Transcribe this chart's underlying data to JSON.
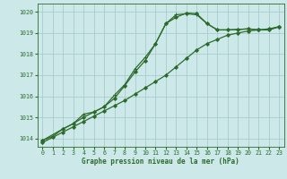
{
  "title": "Graphe pression niveau de la mer (hPa)",
  "bg_color": "#cce8e8",
  "grid_color": "#a8cccc",
  "line_color": "#2d6b2d",
  "xlim": [
    -0.5,
    23.5
  ],
  "ylim": [
    1013.6,
    1020.4
  ],
  "yticks": [
    1014,
    1015,
    1016,
    1017,
    1018,
    1019,
    1020
  ],
  "xticks": [
    0,
    1,
    2,
    3,
    4,
    5,
    6,
    7,
    8,
    9,
    10,
    11,
    12,
    13,
    14,
    15,
    16,
    17,
    18,
    19,
    20,
    21,
    22,
    23
  ],
  "series": [
    {
      "x": [
        0,
        1,
        2,
        3,
        4,
        5,
        6,
        7,
        8,
        9,
        10,
        11,
        12,
        13,
        14,
        15,
        16,
        17,
        18,
        19,
        20,
        21,
        22,
        23
      ],
      "y": [
        1013.8,
        1014.05,
        1014.3,
        1014.55,
        1014.8,
        1015.05,
        1015.3,
        1015.55,
        1015.8,
        1016.1,
        1016.4,
        1016.7,
        1017.0,
        1017.4,
        1017.8,
        1018.2,
        1018.5,
        1018.7,
        1018.9,
        1019.0,
        1019.1,
        1019.15,
        1019.2,
        1019.3
      ],
      "marker": "D",
      "markersize": 2.0,
      "linewidth": 0.9,
      "markerfacecolor": "#2d6b2d"
    },
    {
      "x": [
        0,
        1,
        2,
        3,
        4,
        5,
        6,
        7,
        8,
        9,
        10,
        11,
        12,
        13,
        14,
        15,
        16,
        17,
        18,
        19,
        20,
        21,
        22,
        23
      ],
      "y": [
        1013.9,
        1014.1,
        1014.45,
        1014.7,
        1015.15,
        1015.25,
        1015.5,
        1016.05,
        1016.55,
        1017.3,
        1017.85,
        1018.5,
        1019.45,
        1019.87,
        1019.92,
        1019.87,
        1019.45,
        1019.15,
        1019.15,
        1019.17,
        1019.2,
        1019.15,
        1019.15,
        1019.3
      ],
      "marker": "+",
      "markersize": 3.5,
      "linewidth": 0.9,
      "markerfacecolor": "#2d6b2d"
    },
    {
      "x": [
        0,
        2,
        3,
        4,
        5,
        6,
        7,
        8,
        9,
        10,
        11,
        12,
        13,
        14,
        15,
        16,
        17,
        18,
        19,
        20,
        21,
        22,
        23
      ],
      "y": [
        1013.9,
        1014.45,
        1014.7,
        1015.0,
        1015.25,
        1015.5,
        1015.9,
        1016.5,
        1017.15,
        1017.7,
        1018.5,
        1019.45,
        1019.75,
        1019.95,
        1019.92,
        1019.45,
        1019.15,
        1019.15,
        1019.17,
        1019.2,
        1019.15,
        1019.15,
        1019.3
      ],
      "marker": "D",
      "markersize": 2.0,
      "linewidth": 0.9,
      "markerfacecolor": "#2d6b2d"
    }
  ]
}
